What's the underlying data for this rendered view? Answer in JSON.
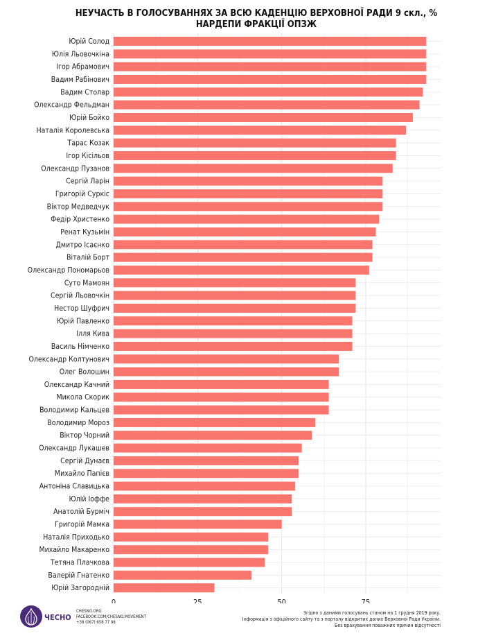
{
  "chart_data": {
    "type": "bar",
    "orientation": "horizontal",
    "title": "НЕУЧАСТЬ В ГОЛОСУВАННЯХ ЗА ВСЮ КАДЕНЦІЮ ВЕРХОВНОЇ РАДИ 9 скл., %",
    "subtitle": "НАРДЕПИ ФРАКЦІЇ ОПЗЖ",
    "xlabel": "",
    "ylabel": "",
    "xlim": [
      0,
      95
    ],
    "xticks": [
      0,
      25,
      50,
      75
    ],
    "grid": true,
    "bar_color": "#F8766D",
    "categories": [
      "Юрій Солод",
      "Юлія Льовочкіна",
      "Ігор Абрамович",
      "Вадим Рабінович",
      "Вадим Столар",
      "Олександр Фельдман",
      "Юрій Бойко",
      "Наталія Королевська",
      "Тарас Козак",
      "Ігор Кісільов",
      "Олександр Пузанов",
      "Сергій Ларін",
      "Григорій Суркіс",
      "Віктор Медведчук",
      "Федір Христенко",
      "Ренат Кузьмін",
      "Дмитро Ісаєнко",
      "Віталій Борт",
      "Олександр Пономарьов",
      "Суто Мамоян",
      "Сергій Льовочкін",
      "Нестор Шуфрич",
      "Юрій Павленко",
      "Ілля Кива",
      "Василь Німченко",
      "Олександр Колтунович",
      "Олег Волошин",
      "Олександр Качний",
      "Микола Скорик",
      "Володимир Кальцев",
      "Володимир Мороз",
      "Віктор Чорний",
      "Олександр Лукашев",
      "Сергій Дунаєв",
      "Михайло Папієв",
      "Антоніна Славицька",
      "Юлій Іоффе",
      "Анатолій Бурміч",
      "Григорій Мамка",
      "Наталія Приходько",
      "Михайло Макаренко",
      "Тетяна Плачкова",
      "Валерій Гнатенко",
      "Юрій Загородній"
    ],
    "values": [
      93,
      93,
      93,
      93,
      92,
      91,
      89,
      87,
      84,
      84,
      83,
      80,
      80,
      80,
      79,
      78,
      77,
      77,
      76,
      72,
      72,
      72,
      71,
      71,
      71,
      67,
      67,
      64,
      64,
      64,
      60,
      59,
      56,
      55,
      55,
      54,
      53,
      53,
      50,
      46,
      46,
      45,
      41,
      30
    ]
  },
  "footer": {
    "brand": "ЧЕСНО",
    "contacts": [
      "CHESNO.ORG",
      "FACEBOOK.COM/CHESNO.MOVEMENT",
      "+38 (067) 658 77 98"
    ],
    "notes": [
      "Згідно з даними голосувань станом на 1 грудня 2019 року.",
      "Інформація з офіційного сайту та з порталу відкритих даних Верховної Ради України.",
      "Без врахування поважних причин відсутності"
    ]
  }
}
